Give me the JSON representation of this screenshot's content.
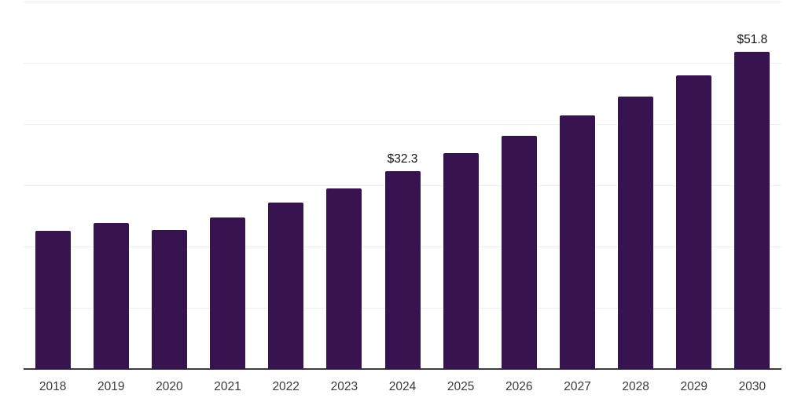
{
  "chart_data": {
    "type": "bar",
    "title": "",
    "categories": [
      "2018",
      "2019",
      "2020",
      "2021",
      "2022",
      "2023",
      "2024",
      "2025",
      "2026",
      "2027",
      "2028",
      "2029",
      "2030"
    ],
    "values": [
      22.6,
      23.9,
      22.7,
      24.8,
      27.2,
      29.5,
      32.3,
      35.2,
      38.1,
      41.4,
      44.5,
      47.9,
      51.8
    ],
    "annotations": [
      {
        "category": "2024",
        "text": "$32.3"
      },
      {
        "category": "2030",
        "text": "$51.8"
      }
    ],
    "xlabel": "",
    "ylabel": "",
    "ylim": [
      0,
      60
    ],
    "gridline_step": 10,
    "grid": true,
    "legend": false,
    "colors": {
      "bar": "#371350",
      "gridline": "#efeff2",
      "axis": "#3d3d3d",
      "tick_label": "#3a3a3a",
      "value_label": "#111111",
      "background": "#ffffff"
    }
  }
}
